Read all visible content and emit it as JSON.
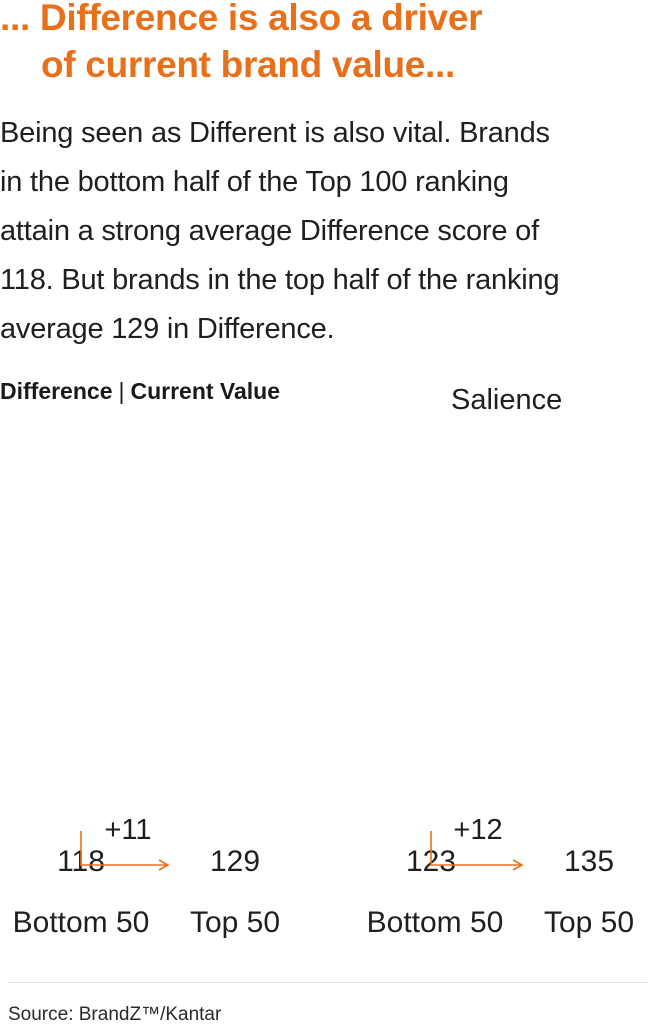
{
  "headline": {
    "line1": "... Difference is also a driver",
    "line2": "of current brand value..."
  },
  "body": {
    "lines": [
      "Being seen as Different is also vital. Brands",
      "in the bottom half of the Top 100 ranking",
      "attain a strong average Difference score of",
      "118. But brands in the top half of the ranking",
      "average 129 in Difference."
    ]
  },
  "colors": {
    "headline": "#e8701a",
    "bar_top": "#f29a18",
    "bar_bottom": "#ea6a10",
    "arrow": "#e8701a"
  },
  "chart_data": [
    {
      "type": "bar",
      "title": {
        "bold1": "Difference",
        "separator": "|",
        "bold2": "Current Value"
      },
      "categories": [
        "Bottom 50",
        "Top 50"
      ],
      "values": [
        118,
        129
      ],
      "data_labels": [
        "118",
        "129"
      ],
      "difference_annotation": "+11",
      "ylim": [
        0,
        135
      ]
    },
    {
      "type": "bar",
      "title": "Salience",
      "categories": [
        "Bottom 50",
        "Top 50"
      ],
      "values": [
        123,
        135
      ],
      "data_labels": [
        "123",
        "135"
      ],
      "difference_annotation": "+12",
      "ylim": [
        0,
        135
      ]
    }
  ],
  "source": "Source: BrandZ™/Kantar"
}
